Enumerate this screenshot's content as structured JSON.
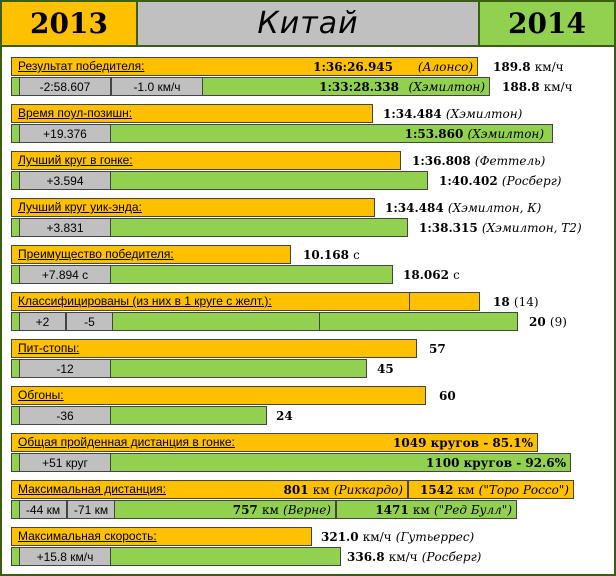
{
  "header": {
    "year_left": "2013",
    "title": "Китай",
    "year_right": "2014"
  },
  "rows": [
    {
      "label": "Результат победителя:",
      "v2013": "1:36:26.945",
      "v2013_note": "(Алонсо)",
      "extra_2013": "189.8",
      "extra_2013_unit": "км/ч",
      "diffs": [
        "-2:58.607",
        "-1.0 км/ч"
      ],
      "v2014": "1:33:28.338",
      "v2014_note": "(Хэмилтон)",
      "extra_2014": "188.8",
      "extra_2014_unit": "км/ч"
    },
    {
      "label": "Время поул-позишн:",
      "v2013": "1:34.484",
      "v2013_note": "(Хэмилтон)",
      "diffs": [
        "+19.376"
      ],
      "v2014": "1:53.860",
      "v2014_note": "(Хэмилтон)"
    },
    {
      "label": "Лучший круг в гонке:",
      "v2013": "1:36.808",
      "v2013_note": "(Феттель)",
      "diffs": [
        "+3.594"
      ],
      "v2014": "1:40.402",
      "v2014_note": "(Росберг)"
    },
    {
      "label": "Лучший круг уик-энда:",
      "v2013": "1:34.484",
      "v2013_note": "(Хэмилтон, К)",
      "diffs": [
        "+3.831"
      ],
      "v2014": "1:38.315",
      "v2014_note": "(Хэмилтон, Т2)"
    },
    {
      "label": "Преимущество победителя:",
      "v2013": "10.168",
      "v2013_unit": "с",
      "diffs": [
        "+7.894 с"
      ],
      "v2014": "18.062",
      "v2014_unit": "с"
    },
    {
      "label": "Классифицированы (из них в 1 круге с желт.):",
      "v2013": "18",
      "v2013_extra": "(14)",
      "diffs": [
        "+2",
        "-5"
      ],
      "v2014": "20",
      "v2014_extra": "(9)"
    },
    {
      "label": "Пит-стопы:",
      "v2013": "57",
      "diffs": [
        "-12"
      ],
      "v2014": "45"
    },
    {
      "label": "Обгоны:",
      "v2013": "60",
      "diffs": [
        "-36"
      ],
      "v2014": "24"
    },
    {
      "label": "Общая пройденная дистанция в гонке:",
      "v2013": "1049 кругов - 85.1%",
      "diffs": [
        "+51 круг"
      ],
      "v2014": "1100 кругов - 92.6%"
    },
    {
      "label": "Максимальная дистанция:",
      "v2013a": "801",
      "v2013a_unit": "км",
      "v2013a_note": "(Риккардо)",
      "v2013b": "1542",
      "v2013b_unit": "км",
      "v2013b_note": "(\"Торо Россо\")",
      "diffs": [
        "-44 км",
        "-71 км"
      ],
      "v2014a": "757",
      "v2014a_unit": "км",
      "v2014a_note": "(Верне)",
      "v2014b": "1471",
      "v2014b_unit": "км",
      "v2014b_note": "(\"Ред Булл\")"
    },
    {
      "label": "Максимальная скорость:",
      "v2013": "321.0",
      "v2013_unit": "км/ч",
      "v2013_note": "(Гутьеррес)",
      "diffs": [
        "+15.8 км/ч"
      ],
      "v2014": "336.8",
      "v2014_unit": "км/ч",
      "v2014_note": "(Росберг)"
    }
  ]
}
